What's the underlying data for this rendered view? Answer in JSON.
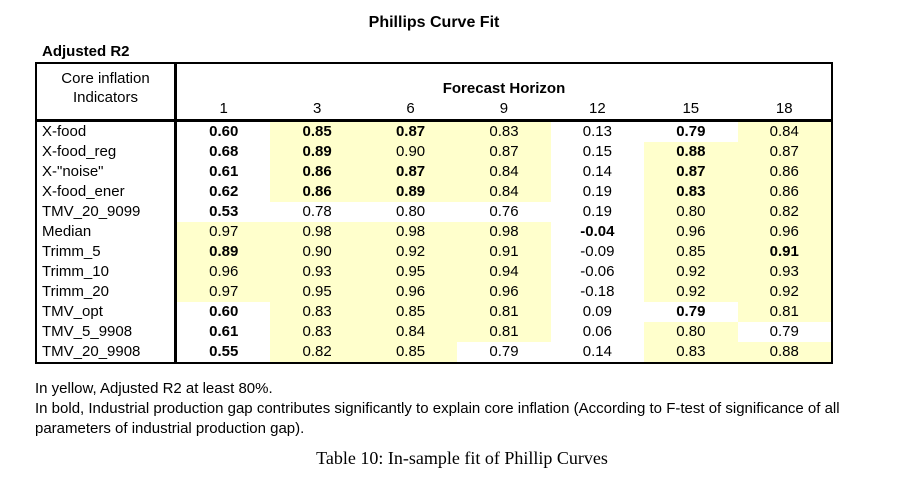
{
  "title": "Phillips Curve Fit",
  "corner_label": "Adjusted R2",
  "table": {
    "row_header_line1": "Core inflation",
    "row_header_line2": "Indicators",
    "col_group_header": "Forecast Horizon",
    "columns": [
      "1",
      "3",
      "6",
      "9",
      "12",
      "15",
      "18"
    ],
    "rows": [
      {
        "label": "X-food",
        "cells": [
          {
            "v": "0.60",
            "b": true,
            "y": false
          },
          {
            "v": "0.85",
            "b": true,
            "y": true
          },
          {
            "v": "0.87",
            "b": true,
            "y": true
          },
          {
            "v": "0.83",
            "b": false,
            "y": true
          },
          {
            "v": "0.13",
            "b": false,
            "y": false
          },
          {
            "v": "0.79",
            "b": true,
            "y": false
          },
          {
            "v": "0.84",
            "b": false,
            "y": true
          }
        ]
      },
      {
        "label": "X-food_reg",
        "cells": [
          {
            "v": "0.68",
            "b": true,
            "y": false
          },
          {
            "v": "0.89",
            "b": true,
            "y": true
          },
          {
            "v": "0.90",
            "b": false,
            "y": true
          },
          {
            "v": "0.87",
            "b": false,
            "y": true
          },
          {
            "v": "0.15",
            "b": false,
            "y": false
          },
          {
            "v": "0.88",
            "b": true,
            "y": true
          },
          {
            "v": "0.87",
            "b": false,
            "y": true
          }
        ]
      },
      {
        "label": "X-\"noise\"",
        "cells": [
          {
            "v": "0.61",
            "b": true,
            "y": false
          },
          {
            "v": "0.86",
            "b": true,
            "y": true
          },
          {
            "v": "0.87",
            "b": true,
            "y": true
          },
          {
            "v": "0.84",
            "b": false,
            "y": true
          },
          {
            "v": "0.14",
            "b": false,
            "y": false
          },
          {
            "v": "0.87",
            "b": true,
            "y": true
          },
          {
            "v": "0.86",
            "b": false,
            "y": true
          }
        ]
      },
      {
        "label": "X-food_ener",
        "cells": [
          {
            "v": "0.62",
            "b": true,
            "y": false
          },
          {
            "v": "0.86",
            "b": true,
            "y": true
          },
          {
            "v": "0.89",
            "b": true,
            "y": true
          },
          {
            "v": "0.84",
            "b": false,
            "y": true
          },
          {
            "v": "0.19",
            "b": false,
            "y": false
          },
          {
            "v": "0.83",
            "b": true,
            "y": true
          },
          {
            "v": "0.86",
            "b": false,
            "y": true
          }
        ]
      },
      {
        "label": "TMV_20_9099",
        "cells": [
          {
            "v": "0.53",
            "b": true,
            "y": false
          },
          {
            "v": "0.78",
            "b": false,
            "y": false
          },
          {
            "v": "0.80",
            "b": false,
            "y": false
          },
          {
            "v": "0.76",
            "b": false,
            "y": false
          },
          {
            "v": "0.19",
            "b": false,
            "y": false
          },
          {
            "v": "0.80",
            "b": false,
            "y": true
          },
          {
            "v": "0.82",
            "b": false,
            "y": true
          }
        ]
      },
      {
        "label": "Median",
        "cells": [
          {
            "v": "0.97",
            "b": false,
            "y": true
          },
          {
            "v": "0.98",
            "b": false,
            "y": true
          },
          {
            "v": "0.98",
            "b": false,
            "y": true
          },
          {
            "v": "0.98",
            "b": false,
            "y": true
          },
          {
            "v": "-0.04",
            "b": true,
            "y": false
          },
          {
            "v": "0.96",
            "b": false,
            "y": true
          },
          {
            "v": "0.96",
            "b": false,
            "y": true
          }
        ]
      },
      {
        "label": "Trimm_5",
        "cells": [
          {
            "v": "0.89",
            "b": true,
            "y": true
          },
          {
            "v": "0.90",
            "b": false,
            "y": true
          },
          {
            "v": "0.92",
            "b": false,
            "y": true
          },
          {
            "v": "0.91",
            "b": false,
            "y": true
          },
          {
            "v": "-0.09",
            "b": false,
            "y": false
          },
          {
            "v": "0.85",
            "b": false,
            "y": true
          },
          {
            "v": "0.91",
            "b": true,
            "y": true
          }
        ]
      },
      {
        "label": "Trimm_10",
        "cells": [
          {
            "v": "0.96",
            "b": false,
            "y": true
          },
          {
            "v": "0.93",
            "b": false,
            "y": true
          },
          {
            "v": "0.95",
            "b": false,
            "y": true
          },
          {
            "v": "0.94",
            "b": false,
            "y": true
          },
          {
            "v": "-0.06",
            "b": false,
            "y": false
          },
          {
            "v": "0.92",
            "b": false,
            "y": true
          },
          {
            "v": "0.93",
            "b": false,
            "y": true
          }
        ]
      },
      {
        "label": "Trimm_20",
        "cells": [
          {
            "v": "0.97",
            "b": false,
            "y": true
          },
          {
            "v": "0.95",
            "b": false,
            "y": true
          },
          {
            "v": "0.96",
            "b": false,
            "y": true
          },
          {
            "v": "0.96",
            "b": false,
            "y": true
          },
          {
            "v": "-0.18",
            "b": false,
            "y": false
          },
          {
            "v": "0.92",
            "b": false,
            "y": true
          },
          {
            "v": "0.92",
            "b": false,
            "y": true
          }
        ]
      },
      {
        "label": "TMV_opt",
        "cells": [
          {
            "v": "0.60",
            "b": true,
            "y": false
          },
          {
            "v": "0.83",
            "b": false,
            "y": true
          },
          {
            "v": "0.85",
            "b": false,
            "y": true
          },
          {
            "v": "0.81",
            "b": false,
            "y": true
          },
          {
            "v": "0.09",
            "b": false,
            "y": false
          },
          {
            "v": "0.79",
            "b": true,
            "y": false
          },
          {
            "v": "0.81",
            "b": false,
            "y": true
          }
        ]
      },
      {
        "label": "TMV_5_9908",
        "cells": [
          {
            "v": "0.61",
            "b": true,
            "y": false
          },
          {
            "v": "0.83",
            "b": false,
            "y": true
          },
          {
            "v": "0.84",
            "b": false,
            "y": true
          },
          {
            "v": "0.81",
            "b": false,
            "y": true
          },
          {
            "v": "0.06",
            "b": false,
            "y": false
          },
          {
            "v": "0.80",
            "b": false,
            "y": true
          },
          {
            "v": "0.79",
            "b": false,
            "y": false
          }
        ]
      },
      {
        "label": "TMV_20_9908",
        "cells": [
          {
            "v": "0.55",
            "b": true,
            "y": false
          },
          {
            "v": "0.82",
            "b": false,
            "y": true
          },
          {
            "v": "0.85",
            "b": false,
            "y": true
          },
          {
            "v": "0.79",
            "b": false,
            "y": false
          },
          {
            "v": "0.14",
            "b": false,
            "y": false
          },
          {
            "v": "0.83",
            "b": false,
            "y": true
          },
          {
            "v": "0.88",
            "b": false,
            "y": true
          }
        ]
      }
    ]
  },
  "footnotes": [
    "In yellow, Adjusted R2 at least 80%.",
    "In bold, Industrial production gap contributes significantly to explain core inflation (According to F-test of significance of all",
    "parameters of industrial production gap)."
  ],
  "caption": "Table 10: In-sample fit of Phillip Curves",
  "colors": {
    "highlight": "#FFFFCC",
    "border": "#000000",
    "text": "#000000"
  }
}
